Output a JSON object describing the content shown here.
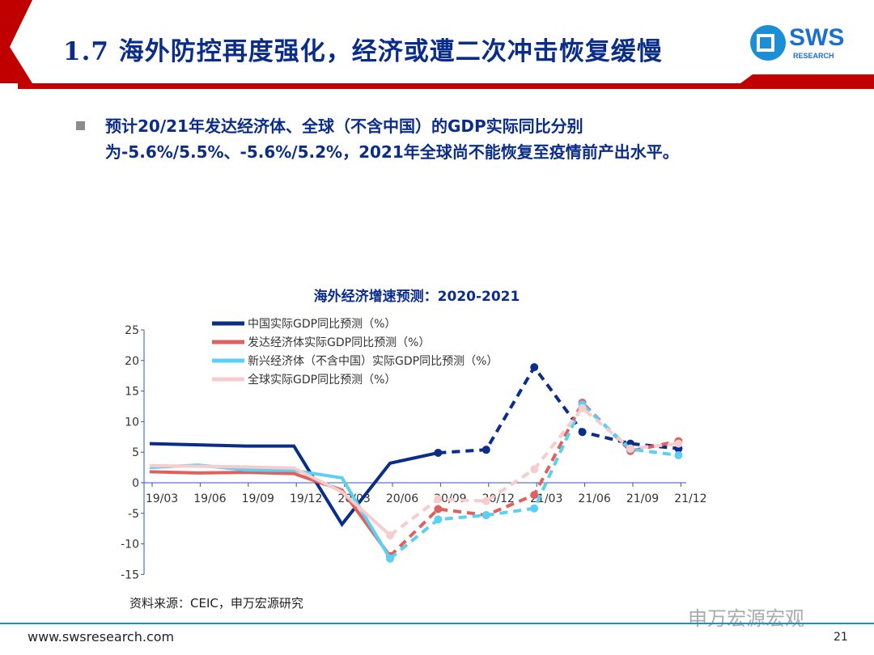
{
  "header": {
    "title": "1.7 海外防控再度强化，经济或遭二次冲击恢复缓慢",
    "logo": "SWS RESEARCH"
  },
  "bullet": "预计20/21年发达经济体、全球（不含中国）的GDP实际同比分别为-5.6%/5.5%、-5.6%/5.2%，2021年全球尚不能恢复至疫情前产出水平。",
  "footer": {
    "source": "资料来源：CEIC，申万宏源研究",
    "site": "www.swsresearch.com",
    "page": "21",
    "watermark": "申万宏源宏观"
  },
  "chart_data": {
    "type": "line",
    "title": "海外经济增速预测：2020-2021",
    "categories": [
      "19/03",
      "19/06",
      "19/09",
      "19/12",
      "20/03",
      "20/06",
      "20/09",
      "20/12",
      "21/03",
      "21/06",
      "21/09",
      "21/12"
    ],
    "ylim": [
      -15,
      25
    ],
    "yticks": [
      25,
      20,
      15,
      10,
      5,
      0,
      -5,
      -10,
      -15
    ],
    "legend_position": "top-left",
    "series": [
      {
        "name": "中国实际GDP同比预测（%）",
        "color": "#0b2d8a",
        "dash_from": 6,
        "values": [
          6.4,
          6.2,
          6.0,
          6.0,
          -6.8,
          3.2,
          4.9,
          5.4,
          18.9,
          8.3,
          6.4,
          5.6
        ]
      },
      {
        "name": "发达经济体实际GDP同比预测（%）",
        "color": "#e06060",
        "dash_from": 5,
        "values": [
          1.8,
          1.6,
          1.7,
          1.5,
          -1.2,
          -12.0,
          -4.3,
          -5.3,
          -2.0,
          13.1,
          5.2,
          6.8
        ]
      },
      {
        "name": "新兴经济体（不含中国）实际GDP同比预测（%）",
        "color": "#5ad0f5",
        "dash_from": 5,
        "values": [
          2.5,
          2.9,
          2.1,
          2.0,
          0.8,
          -12.4,
          -6.0,
          -5.3,
          -4.2,
          12.8,
          5.5,
          4.5
        ]
      },
      {
        "name": "全球实际GDP同比预测（%）",
        "color": "#f6cccc",
        "dash_from": 5,
        "values": [
          2.8,
          2.7,
          2.6,
          2.4,
          -1.5,
          -8.6,
          -2.7,
          -3.0,
          2.2,
          12.2,
          5.6,
          6.4
        ]
      }
    ]
  }
}
